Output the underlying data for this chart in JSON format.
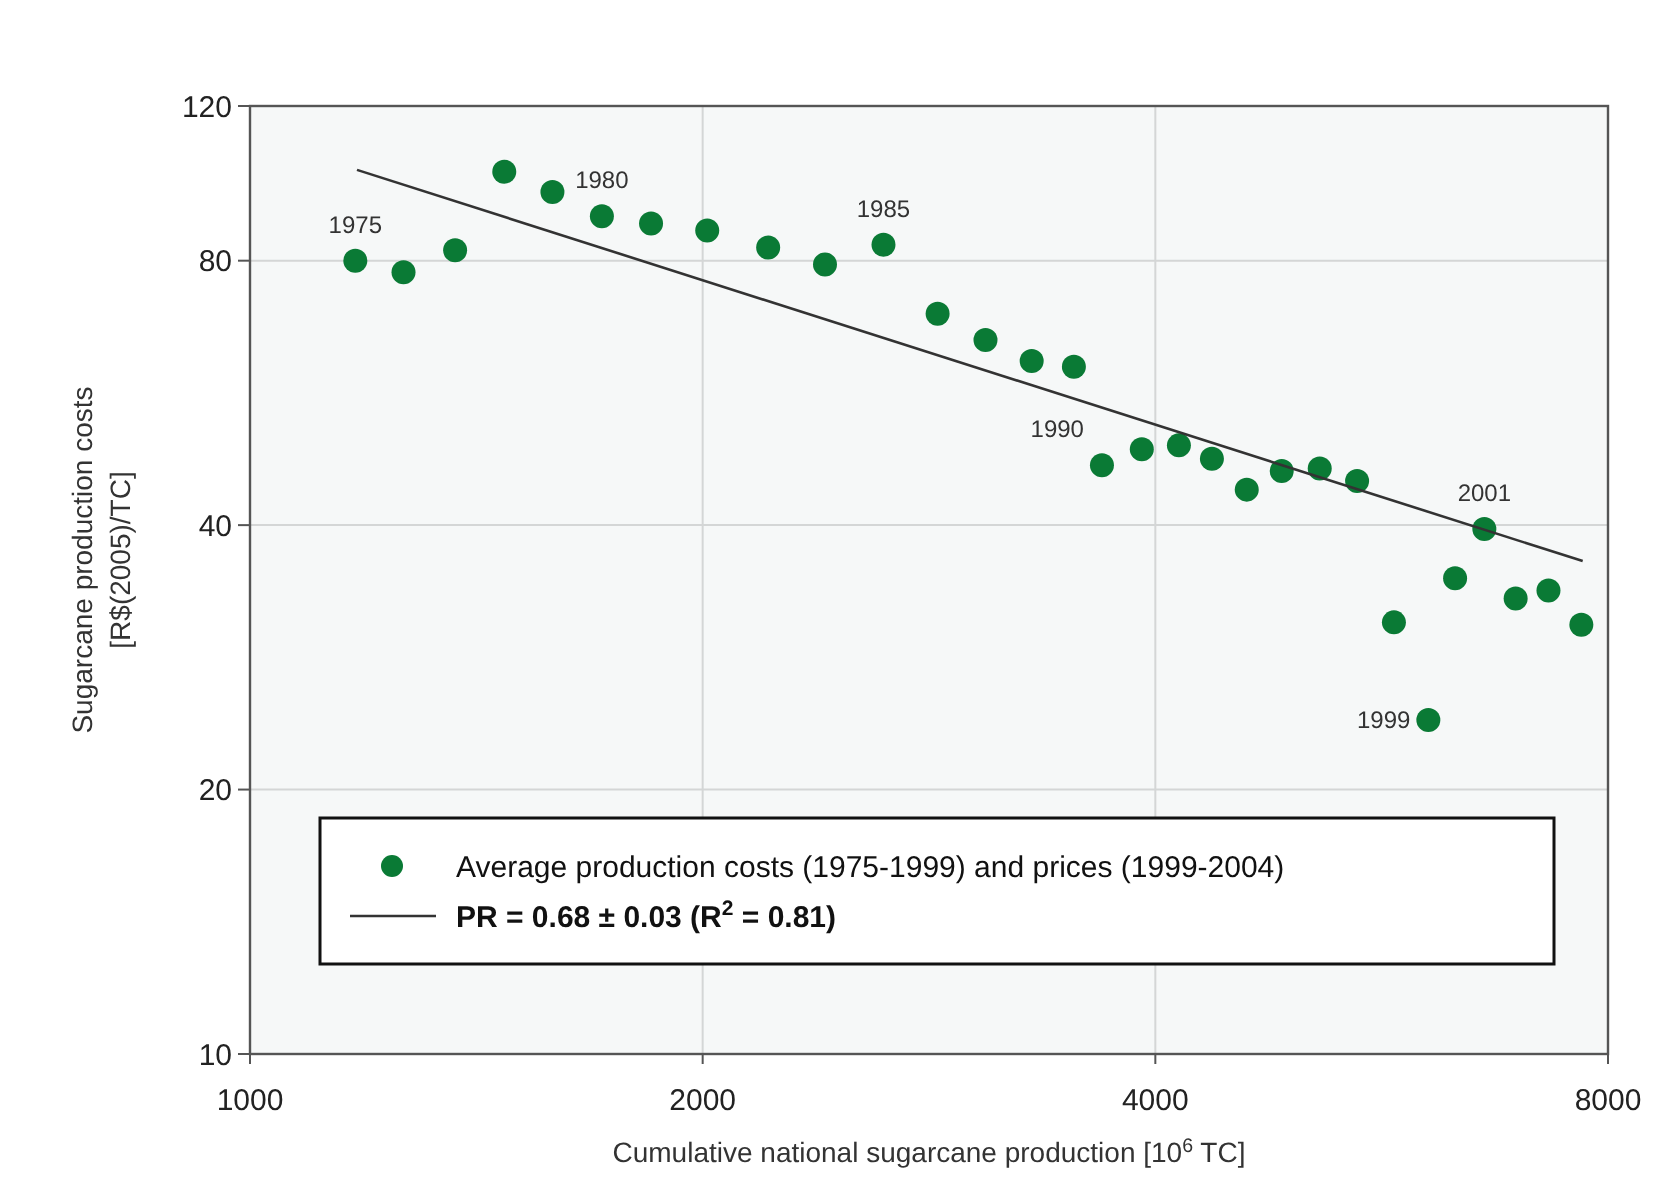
{
  "chart_data": {
    "type": "scatter",
    "xlabel": "Cumulative national sugarcane production [10$^{6}$ TC]",
    "ylabel": "Sugarcane production costs\n[R$(2005)/TC]",
    "log": "xy",
    "xlim": [
      1000,
      8000
    ],
    "xticks": [
      1000,
      2000,
      4000,
      8000
    ],
    "ylim": [
      10,
      120
    ],
    "yticks": [
      10,
      20,
      40,
      80,
      120
    ],
    "grid": true,
    "legend": "bottom",
    "series": [
      {
        "name": "Average production costs (1975-1999) and prices (1999-2004)",
        "color": "#0a7a35",
        "marker": "circle",
        "x": [
          1175,
          1265,
          1369,
          1476,
          1589,
          1714,
          1848,
          2014,
          2211,
          2412,
          2638,
          2866,
          3084,
          3310,
          3531,
          3686,
          3918,
          4147,
          4362,
          4601,
          4854,
          5145,
          5448,
          5764,
          6076,
          6330,
          6620,
          6945,
          7303,
          7680
        ],
        "values": [
          80,
          77.6,
          82.2,
          101,
          95.8,
          89.9,
          88.2,
          86.6,
          82.8,
          79.2,
          83.4,
          69.6,
          65.0,
          61.5,
          60.6,
          46.8,
          48.8,
          49.3,
          47.6,
          43.9,
          46.1,
          46.4,
          44.9,
          31.0,
          24.0,
          34.8,
          39.6,
          33.0,
          33.7,
          30.8
        ]
      },
      {
        "name": "PR = 0.68 ± 0.03 (R$^{2}$ = 0.81)",
        "color": "#333333",
        "type": "line",
        "line_style": "solid",
        "x": [
          1178,
          7696
        ],
        "values": [
          101.5,
          36.4
        ]
      }
    ],
    "annotations": [
      {
        "text": "1975",
        "x": 1175,
        "y": 80
      },
      {
        "text": "1980",
        "x": 1714,
        "y": 89.9
      },
      {
        "text": "1985",
        "x": 2638,
        "y": 83.4
      },
      {
        "text": "1990",
        "x": 3686,
        "y": 46.8
      },
      {
        "text": "1999",
        "x": 6076,
        "y": 24.0
      },
      {
        "text": "2001",
        "x": 6620,
        "y": 39.6
      }
    ]
  }
}
